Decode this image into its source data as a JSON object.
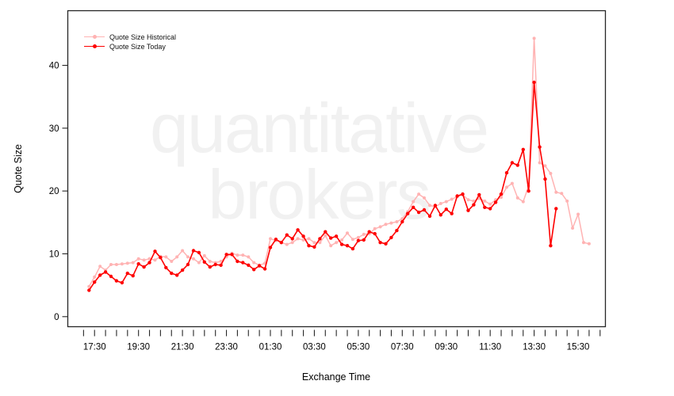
{
  "watermark": {
    "line1": "quantitative",
    "line2": "brokers",
    "color": "#f1f1f1"
  },
  "axes": {
    "x_label": "Exchange Time",
    "y_label": "Quote Size",
    "y_ticks": [
      0,
      10,
      20,
      30,
      40
    ],
    "x_major_labels": [
      "17:30",
      "19:30",
      "21:30",
      "23:30",
      "01:30",
      "03:30",
      "05:30",
      "07:30",
      "09:30",
      "11:30",
      "13:30",
      "15:30"
    ],
    "x_minor_interval_minutes": 30
  },
  "legend": [
    {
      "label": "Quote Size Historical",
      "color": "#ffb3b3"
    },
    {
      "label": "Quote Size Today",
      "color": "#fe0000"
    }
  ],
  "chart_data": {
    "type": "line",
    "title": "",
    "xlabel": "Exchange Time",
    "ylabel": "Quote Size",
    "ylim": [
      -1.5,
      48.5
    ],
    "grid": false,
    "legend_position": "top-left",
    "marker": "circle",
    "x_interval_minutes": 15,
    "series": [
      {
        "name": "Quote Size Historical",
        "color": "#ffb3b3",
        "times": [
          "17:15",
          "17:30",
          "17:45",
          "18:00",
          "18:15",
          "18:30",
          "18:45",
          "19:00",
          "19:15",
          "19:30",
          "19:45",
          "20:00",
          "20:15",
          "20:30",
          "20:45",
          "21:00",
          "21:15",
          "21:30",
          "21:45",
          "22:00",
          "22:15",
          "22:30",
          "22:45",
          "23:00",
          "23:15",
          "23:30",
          "23:45",
          "00:00",
          "00:15",
          "00:30",
          "00:45",
          "01:00",
          "01:15",
          "01:30",
          "01:45",
          "02:00",
          "02:15",
          "02:30",
          "02:45",
          "03:00",
          "03:15",
          "03:30",
          "03:45",
          "04:00",
          "04:15",
          "04:30",
          "04:45",
          "05:00",
          "05:15",
          "05:30",
          "05:45",
          "06:00",
          "06:15",
          "06:30",
          "06:45",
          "07:00",
          "07:15",
          "07:30",
          "07:45",
          "08:00",
          "08:15",
          "08:30",
          "08:45",
          "09:00",
          "09:15",
          "09:30",
          "09:45",
          "10:00",
          "10:15",
          "10:30",
          "10:45",
          "11:00",
          "11:15",
          "11:30",
          "11:45",
          "12:00",
          "12:15",
          "12:30",
          "12:45",
          "13:00",
          "13:15",
          "13:30",
          "13:45",
          "14:00",
          "14:15",
          "14:30",
          "14:45",
          "15:00",
          "15:15",
          "15:30",
          "15:45",
          "16:00"
        ],
        "values": [
          4.8,
          6.3,
          8.0,
          7.4,
          8.3,
          8.3,
          8.4,
          8.5,
          8.6,
          9.2,
          9.0,
          9.2,
          9.0,
          9.6,
          9.5,
          8.8,
          9.5,
          10.5,
          9.5,
          9.2,
          8.6,
          9.7,
          8.8,
          8.6,
          8.8,
          9.5,
          10.1,
          9.8,
          9.8,
          9.5,
          8.6,
          8.2,
          8.5,
          12.4,
          12.1,
          11.8,
          11.5,
          11.8,
          12.4,
          12.2,
          12.4,
          11.8,
          11.8,
          12.9,
          11.3,
          11.8,
          12.2,
          13.3,
          12.3,
          12.6,
          13.1,
          13.2,
          14.0,
          14.3,
          14.7,
          14.9,
          15.1,
          15.6,
          16.7,
          18.3,
          19.5,
          18.9,
          17.7,
          17.5,
          18.0,
          18.3,
          18.7,
          19.1,
          19.4,
          18.6,
          18.4,
          18.8,
          18.4,
          17.9,
          18.6,
          19.0,
          20.6,
          21.2,
          18.9,
          18.3,
          20.8,
          44.3,
          24.5,
          24.0,
          22.8,
          19.8,
          19.6,
          18.4,
          14.1,
          16.3,
          11.8,
          11.6
        ]
      },
      {
        "name": "Quote Size Today",
        "color": "#fe0000",
        "times": [
          "17:15",
          "17:30",
          "17:45",
          "18:00",
          "18:15",
          "18:30",
          "18:45",
          "19:00",
          "19:15",
          "19:30",
          "19:45",
          "20:00",
          "20:15",
          "20:30",
          "20:45",
          "21:00",
          "21:15",
          "21:30",
          "21:45",
          "22:00",
          "22:15",
          "22:30",
          "22:45",
          "23:00",
          "23:15",
          "23:30",
          "23:45",
          "00:00",
          "00:15",
          "00:30",
          "00:45",
          "01:00",
          "01:15",
          "01:30",
          "01:45",
          "02:00",
          "02:15",
          "02:30",
          "02:45",
          "03:00",
          "03:15",
          "03:30",
          "03:45",
          "04:00",
          "04:15",
          "04:30",
          "04:45",
          "05:00",
          "05:15",
          "05:30",
          "05:45",
          "06:00",
          "06:15",
          "06:30",
          "06:45",
          "07:00",
          "07:15",
          "07:30",
          "07:45",
          "08:00",
          "08:15",
          "08:30",
          "08:45",
          "09:00",
          "09:15",
          "09:30",
          "09:45",
          "10:00",
          "10:15",
          "10:30",
          "10:45",
          "11:00",
          "11:15",
          "11:30",
          "11:45",
          "12:00",
          "12:15",
          "12:30",
          "12:45",
          "13:00",
          "13:15",
          "13:30",
          "13:45",
          "14:00",
          "14:15",
          "14:30"
        ],
        "values": [
          4.2,
          5.5,
          6.6,
          7.1,
          6.4,
          5.7,
          5.4,
          6.9,
          6.5,
          8.4,
          7.9,
          8.6,
          10.4,
          9.4,
          7.8,
          6.9,
          6.6,
          7.4,
          8.3,
          10.5,
          10.2,
          8.7,
          7.9,
          8.3,
          8.2,
          9.9,
          9.9,
          8.8,
          8.6,
          8.2,
          7.5,
          8.1,
          7.6,
          11.0,
          12.3,
          11.8,
          13.0,
          12.4,
          13.8,
          12.8,
          11.3,
          11.1,
          12.4,
          13.5,
          12.5,
          12.8,
          11.5,
          11.3,
          10.8,
          12.1,
          12.2,
          13.5,
          13.2,
          11.8,
          11.6,
          12.6,
          13.7,
          15.1,
          16.4,
          17.4,
          16.6,
          17.0,
          16.0,
          17.7,
          16.2,
          17.1,
          16.4,
          19.2,
          19.5,
          16.9,
          17.8,
          19.4,
          17.4,
          17.2,
          18.2,
          19.5,
          22.9,
          24.5,
          24.1,
          26.6,
          20.0,
          37.3,
          27.0,
          21.9,
          11.3,
          17.2
        ]
      }
    ]
  }
}
